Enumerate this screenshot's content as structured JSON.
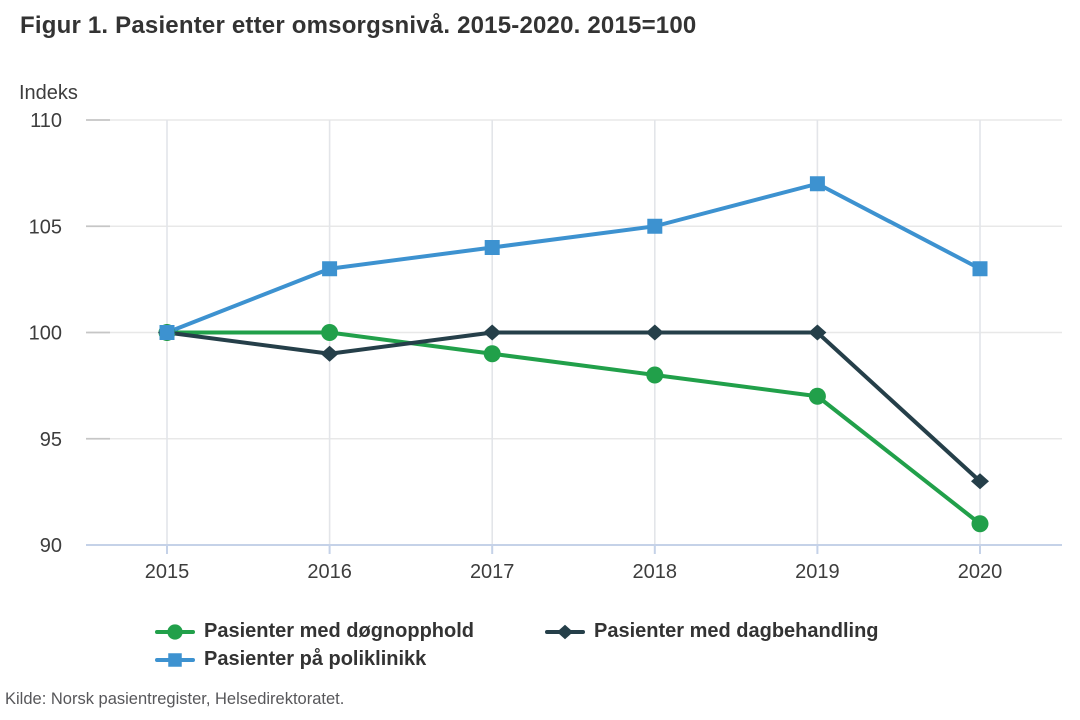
{
  "title": "Figur 1. Pasienter etter omsorgsnivå. 2015-2020. 2015=100",
  "source": "Kilde: Norsk pasientregister, Helsedirektoratet.",
  "chart_data": {
    "type": "line",
    "title": "Figur 1. Pasienter etter omsorgsnivå. 2015-2020. 2015=100",
    "xlabel": "",
    "ylabel": "Indeks",
    "categories": [
      "2015",
      "2016",
      "2017",
      "2018",
      "2019",
      "2020"
    ],
    "ylim": [
      90,
      110
    ],
    "yticks": [
      110,
      105,
      100,
      95,
      90
    ],
    "grid": true,
    "legend_position": "bottom",
    "series": [
      {
        "name": "Pasienter med døgnopphold",
        "marker": "circle",
        "color": "#21a04a",
        "values": [
          100,
          100,
          99,
          98,
          97,
          91
        ]
      },
      {
        "name": "Pasienter med dagbehandling",
        "marker": "diamond",
        "color": "#253f49",
        "values": [
          100,
          99,
          100,
          100,
          100,
          93
        ]
      },
      {
        "name": "Pasienter på poliklinikk",
        "marker": "square",
        "color": "#3d92d0",
        "values": [
          100,
          103,
          104,
          105,
          107,
          103
        ]
      }
    ],
    "style": {
      "h_gridline_color": "#e8e8e8",
      "v_gridline_color": "#e3e5e9",
      "y_tick_color": "#c6c6c6",
      "axis_line_color": "#c5d2e8",
      "tick_label_color": "#3d3d3d"
    }
  }
}
